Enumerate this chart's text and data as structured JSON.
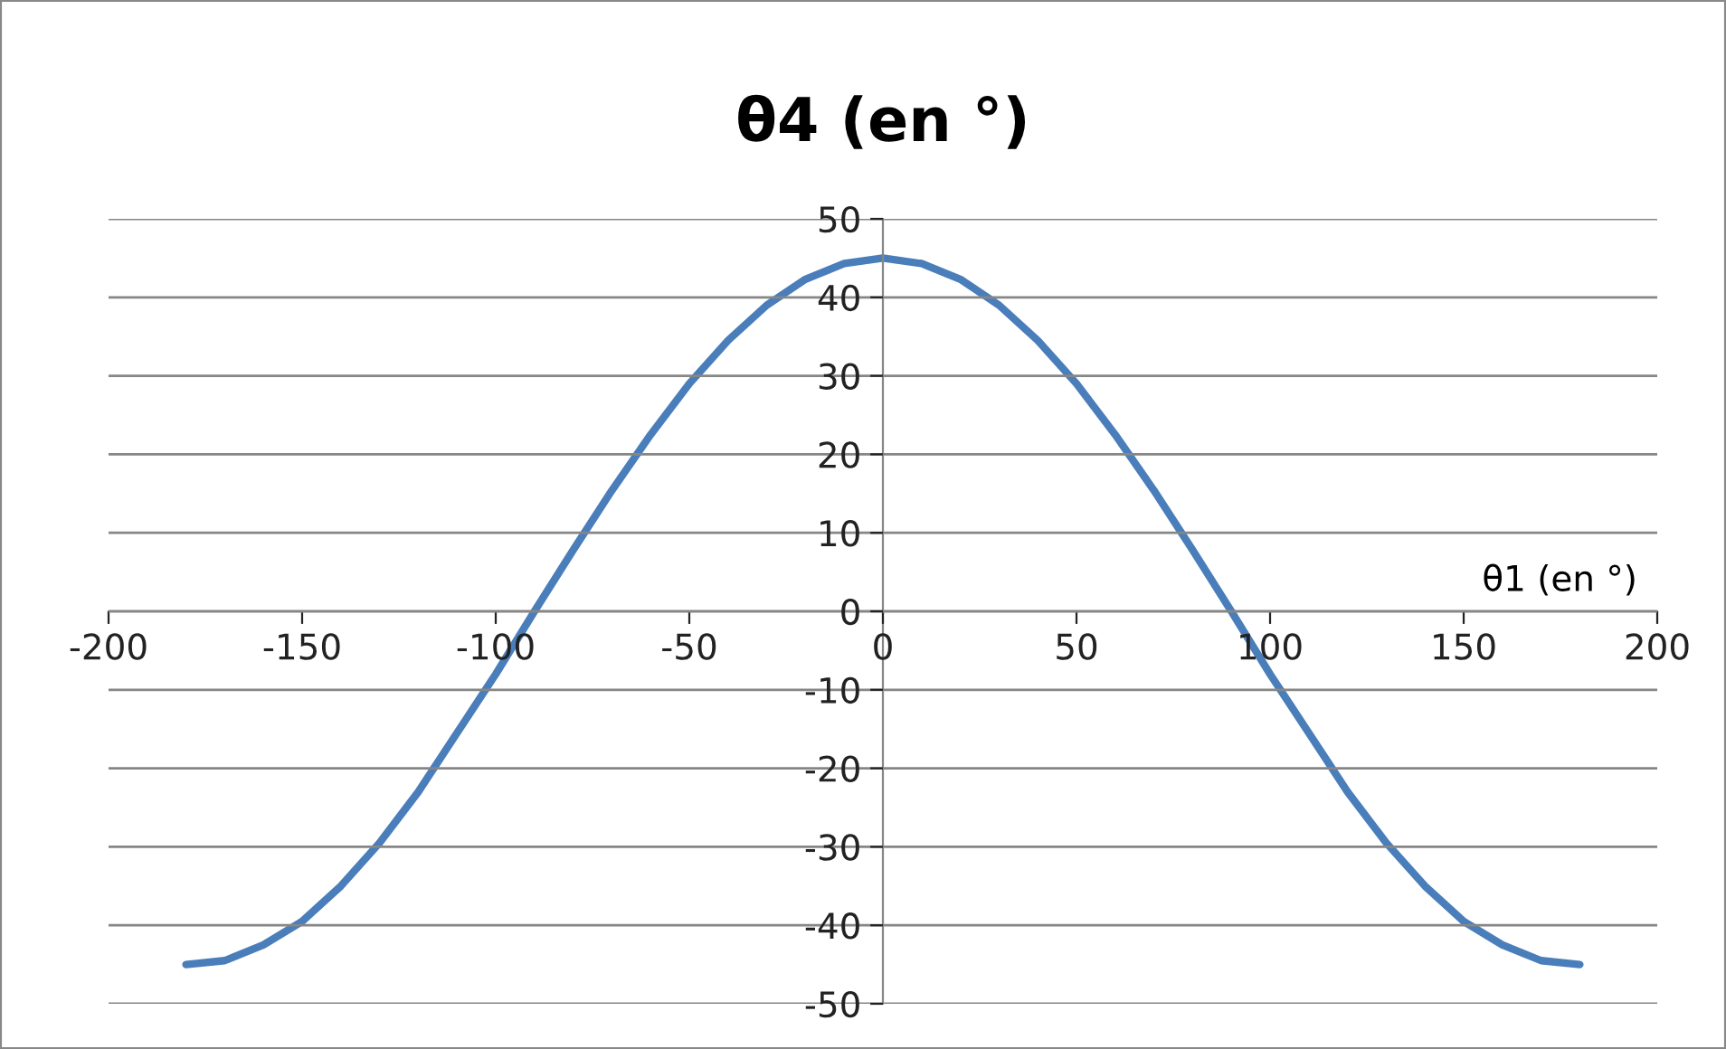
{
  "chart_data": {
    "type": "line",
    "title": "θ4 (en °)",
    "xlabel": "θ1 (en °)",
    "x": [
      -180,
      -170,
      -160,
      -150,
      -140,
      -130,
      -120,
      -110,
      -100,
      -90,
      -80,
      -70,
      -60,
      -50,
      -40,
      -30,
      -20,
      -10,
      0,
      10,
      20,
      30,
      40,
      50,
      60,
      70,
      80,
      90,
      100,
      110,
      120,
      130,
      140,
      150,
      160,
      170,
      180
    ],
    "series": [
      {
        "color": "#4a7ebb",
        "values": [
          -45,
          -44.5,
          -42.5,
          -39.5,
          -35,
          -29.5,
          -23,
          -15.5,
          -8,
          0,
          7.8,
          15.4,
          22.5,
          29,
          34.5,
          39,
          42.3,
          44.3,
          45,
          44.3,
          42.3,
          39,
          34.5,
          29,
          22.5,
          15.4,
          7.8,
          0,
          -8,
          -15.5,
          -23,
          -29.5,
          -35,
          -39.5,
          -42.5,
          -44.5,
          -45
        ]
      }
    ],
    "xlim": [
      -200,
      200
    ],
    "xticks": [
      -200,
      -150,
      -100,
      -50,
      0,
      50,
      100,
      150,
      200
    ],
    "ylim": [
      -50,
      50
    ],
    "yticks": [
      -50,
      -40,
      -30,
      -20,
      -10,
      0,
      10,
      20,
      30,
      40,
      50
    ],
    "grid": "y",
    "legend": false,
    "marker": "none",
    "line_style": "solid"
  }
}
